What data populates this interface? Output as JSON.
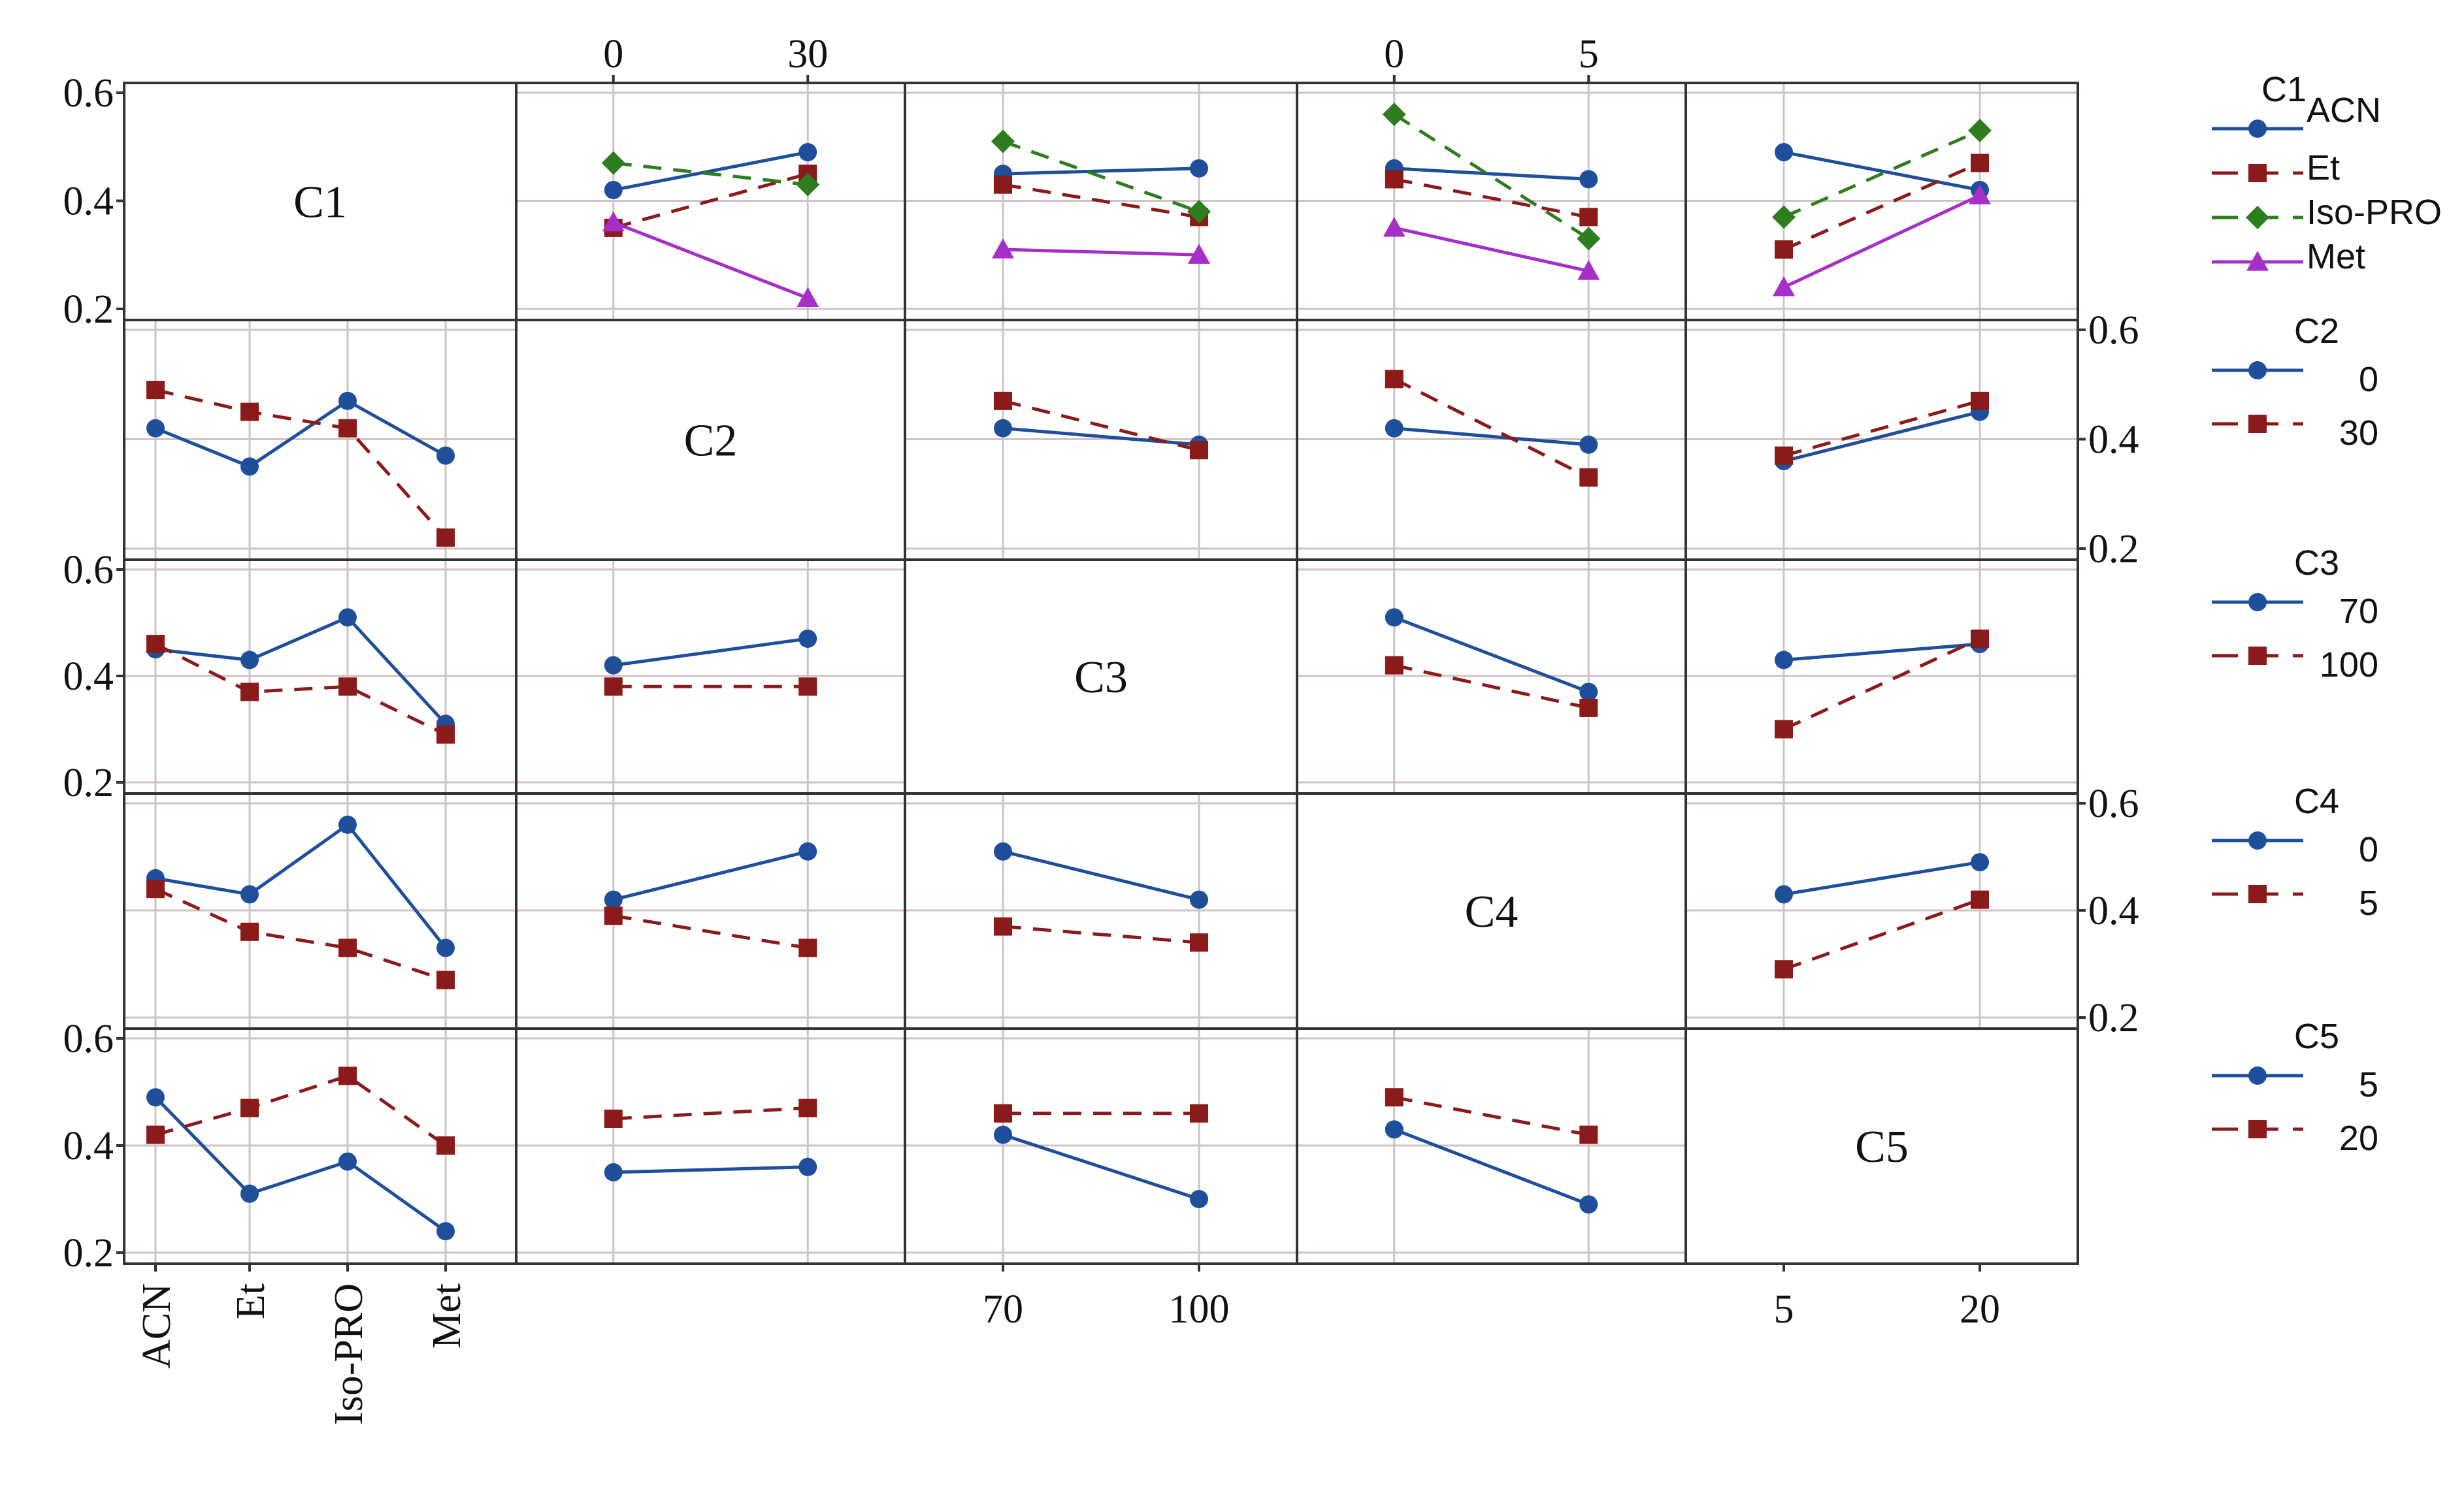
{
  "chart_data": {
    "type": "line",
    "title": "",
    "description_type": "interaction plot matrix",
    "factors": [
      "C1",
      "C2",
      "C3",
      "C4",
      "C5"
    ],
    "levels": {
      "C1": [
        "ACN",
        "Et",
        "Iso-PRO",
        "Met"
      ],
      "C2": [
        "0",
        "30"
      ],
      "C3": [
        "70",
        "100"
      ],
      "C4": [
        "0",
        "5"
      ],
      "C5": [
        "5",
        "20"
      ]
    },
    "ylim": [
      0.2,
      0.6
    ],
    "y_ticks": [
      "0.2",
      "0.4",
      "0.6"
    ],
    "colors": {
      "blue": "#1f4e9a",
      "red": "#8b1a1a",
      "green": "#2e7d1e",
      "purple": "#a52fc8",
      "grid": "#cfc3c3",
      "frame": "#333333"
    },
    "legends": {
      "C1": {
        "title": "C1",
        "entries": [
          "ACN",
          "Et",
          "Iso-PRO",
          "Met"
        ]
      },
      "C2": {
        "title": "C2",
        "entries": [
          "0",
          "30"
        ]
      },
      "C3": {
        "title": "C3",
        "entries": [
          "70",
          "100"
        ]
      },
      "C4": {
        "title": "C4",
        "entries": [
          "0",
          "5"
        ]
      },
      "C5": {
        "title": "C5",
        "entries": [
          "5",
          "20"
        ]
      }
    },
    "panels": {
      "C1-C2": {
        "series": [
          {
            "name": "ACN",
            "values": [
              0.42,
              0.49
            ]
          },
          {
            "name": "Et",
            "values": [
              0.35,
              0.45
            ]
          },
          {
            "name": "Iso-PRO",
            "values": [
              0.47,
              0.43
            ]
          },
          {
            "name": "Met",
            "values": [
              0.36,
              0.22
            ]
          }
        ]
      },
      "C1-C3": {
        "series": [
          {
            "name": "ACN",
            "values": [
              0.45,
              0.46
            ]
          },
          {
            "name": "Et",
            "values": [
              0.43,
              0.37
            ]
          },
          {
            "name": "Iso-PRO",
            "values": [
              0.51,
              0.38
            ]
          },
          {
            "name": "Met",
            "values": [
              0.31,
              0.3
            ]
          }
        ]
      },
      "C1-C4": {
        "series": [
          {
            "name": "ACN",
            "values": [
              0.46,
              0.44
            ]
          },
          {
            "name": "Et",
            "values": [
              0.44,
              0.37
            ]
          },
          {
            "name": "Iso-PRO",
            "values": [
              0.56,
              0.33
            ]
          },
          {
            "name": "Met",
            "values": [
              0.35,
              0.27
            ]
          }
        ]
      },
      "C1-C5": {
        "series": [
          {
            "name": "ACN",
            "values": [
              0.49,
              0.42
            ]
          },
          {
            "name": "Et",
            "values": [
              0.31,
              0.47
            ]
          },
          {
            "name": "Iso-PRO",
            "values": [
              0.37,
              0.53
            ]
          },
          {
            "name": "Met",
            "values": [
              0.24,
              0.41
            ]
          }
        ]
      },
      "C2-C1": {
        "series": [
          {
            "name": "0",
            "values": [
              0.42,
              0.35,
              0.47,
              0.37
            ]
          },
          {
            "name": "30",
            "values": [
              0.49,
              0.45,
              0.42,
              0.22
            ]
          }
        ]
      },
      "C2-C3": {
        "series": [
          {
            "name": "0",
            "values": [
              0.42,
              0.39
            ]
          },
          {
            "name": "30",
            "values": [
              0.47,
              0.38
            ]
          }
        ]
      },
      "C2-C4": {
        "series": [
          {
            "name": "0",
            "values": [
              0.42,
              0.39
            ]
          },
          {
            "name": "30",
            "values": [
              0.51,
              0.33
            ]
          }
        ]
      },
      "C2-C5": {
        "series": [
          {
            "name": "0",
            "values": [
              0.36,
              0.45
            ]
          },
          {
            "name": "30",
            "values": [
              0.37,
              0.47
            ]
          }
        ]
      },
      "C3-C1": {
        "series": [
          {
            "name": "70",
            "values": [
              0.45,
              0.43,
              0.51,
              0.31
            ]
          },
          {
            "name": "100",
            "values": [
              0.46,
              0.37,
              0.38,
              0.29
            ]
          }
        ]
      },
      "C3-C2": {
        "series": [
          {
            "name": "70",
            "values": [
              0.42,
              0.47
            ]
          },
          {
            "name": "100",
            "values": [
              0.38,
              0.38
            ]
          }
        ]
      },
      "C3-C4": {
        "series": [
          {
            "name": "70",
            "values": [
              0.51,
              0.37
            ]
          },
          {
            "name": "100",
            "values": [
              0.42,
              0.34
            ]
          }
        ]
      },
      "C3-C5": {
        "series": [
          {
            "name": "70",
            "values": [
              0.43,
              0.46
            ]
          },
          {
            "name": "100",
            "values": [
              0.3,
              0.47
            ]
          }
        ]
      },
      "C4-C1": {
        "series": [
          {
            "name": "0",
            "values": [
              0.46,
              0.43,
              0.56,
              0.33
            ]
          },
          {
            "name": "5",
            "values": [
              0.44,
              0.36,
              0.33,
              0.27
            ]
          }
        ]
      },
      "C4-C2": {
        "series": [
          {
            "name": "0",
            "values": [
              0.42,
              0.51
            ]
          },
          {
            "name": "5",
            "values": [
              0.39,
              0.33
            ]
          }
        ]
      },
      "C4-C3": {
        "series": [
          {
            "name": "0",
            "values": [
              0.51,
              0.42
            ]
          },
          {
            "name": "5",
            "values": [
              0.37,
              0.34
            ]
          }
        ]
      },
      "C4-C5": {
        "series": [
          {
            "name": "0",
            "values": [
              0.43,
              0.49
            ]
          },
          {
            "name": "5",
            "values": [
              0.29,
              0.42
            ]
          }
        ]
      },
      "C5-C1": {
        "series": [
          {
            "name": "5",
            "values": [
              0.49,
              0.31,
              0.37,
              0.24
            ]
          },
          {
            "name": "20",
            "values": [
              0.42,
              0.47,
              0.53,
              0.4
            ]
          }
        ]
      },
      "C5-C2": {
        "series": [
          {
            "name": "5",
            "values": [
              0.35,
              0.36
            ]
          },
          {
            "name": "20",
            "values": [
              0.45,
              0.47
            ]
          }
        ]
      },
      "C5-C3": {
        "series": [
          {
            "name": "5",
            "values": [
              0.42,
              0.3
            ]
          },
          {
            "name": "20",
            "values": [
              0.46,
              0.46
            ]
          }
        ]
      },
      "C5-C4": {
        "series": [
          {
            "name": "5",
            "values": [
              0.43,
              0.29
            ]
          },
          {
            "name": "20",
            "values": [
              0.49,
              0.42
            ]
          }
        ]
      }
    }
  }
}
